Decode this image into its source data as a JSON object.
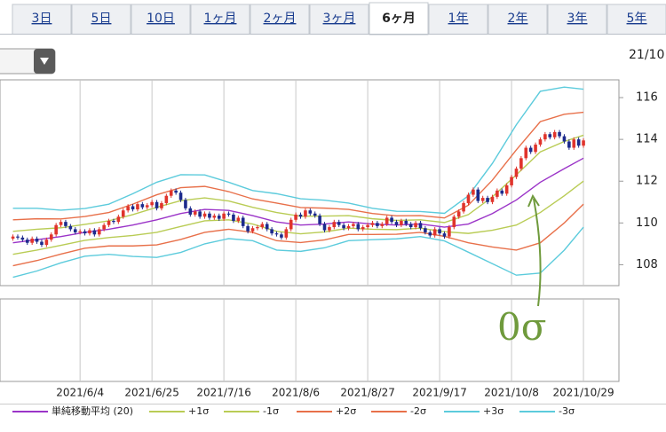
{
  "tabs": {
    "items": [
      "3日",
      "5日",
      "10日",
      "1ヶ月",
      "2ヶ月",
      "3ヶ月",
      "6ヶ月",
      "1年",
      "2年",
      "3年",
      "5年"
    ],
    "selected": 6
  },
  "date_label": "21/10",
  "chart_data": {
    "type": "candlestick",
    "x": [
      0,
      1,
      2,
      3,
      4,
      5,
      6,
      7,
      8,
      9,
      10,
      11,
      12,
      13,
      14,
      15,
      16,
      17,
      18,
      19,
      20,
      21,
      22,
      23,
      24,
      25,
      26,
      27,
      28,
      29,
      30,
      31,
      32,
      33,
      34,
      35,
      36,
      37,
      38,
      39,
      40,
      41,
      42,
      43,
      44,
      45,
      46,
      47,
      48,
      49,
      50,
      51,
      52,
      53,
      54,
      55,
      56,
      57,
      58,
      59,
      60,
      61,
      62,
      63,
      64,
      65,
      66,
      67,
      68,
      69,
      70,
      71,
      72,
      73,
      74,
      75,
      76,
      77,
      78,
      79,
      80,
      81,
      82,
      83,
      84,
      85,
      86,
      87,
      88,
      89,
      90,
      91,
      92,
      93,
      94,
      95,
      96,
      97,
      98,
      99,
      100,
      101,
      102,
      103,
      104,
      105,
      106,
      107,
      108,
      109,
      110,
      111,
      112,
      113,
      114,
      115,
      116,
      117,
      118,
      119
    ],
    "open": [
      109.25,
      109.35,
      109.3,
      109.2,
      109.05,
      109.25,
      109.1,
      108.95,
      109.2,
      109.45,
      109.9,
      110.05,
      109.85,
      109.7,
      109.55,
      109.6,
      109.5,
      109.65,
      109.45,
      109.7,
      109.9,
      110.1,
      110.05,
      110.3,
      110.6,
      110.8,
      110.65,
      110.9,
      110.75,
      110.85,
      111.0,
      110.7,
      110.95,
      111.3,
      111.55,
      111.45,
      111.1,
      110.7,
      110.4,
      110.55,
      110.3,
      110.45,
      110.25,
      110.35,
      110.2,
      110.45,
      110.4,
      110.1,
      110.25,
      109.85,
      109.6,
      109.75,
      109.8,
      109.95,
      109.7,
      109.5,
      109.45,
      109.3,
      109.7,
      110.15,
      110.4,
      110.3,
      110.6,
      110.45,
      110.35,
      109.95,
      109.65,
      109.8,
      110.05,
      109.9,
      109.75,
      109.85,
      109.95,
      109.7,
      109.8,
      109.9,
      110.0,
      109.85,
      109.95,
      110.25,
      110.05,
      109.9,
      110.1,
      109.95,
      109.8,
      110.0,
      109.75,
      109.55,
      109.4,
      109.7,
      109.5,
      109.35,
      109.8,
      110.3,
      110.55,
      110.95,
      111.35,
      111.6,
      111.05,
      111.2,
      111.0,
      111.25,
      111.55,
      111.4,
      111.8,
      112.2,
      112.6,
      113.1,
      113.6,
      113.4,
      113.75,
      114.0,
      114.25,
      114.1,
      114.35,
      114.15,
      113.9,
      113.6,
      114.0,
      113.7
    ],
    "high": [
      109.45,
      109.45,
      109.4,
      109.3,
      109.35,
      109.35,
      109.2,
      109.3,
      109.55,
      110.0,
      110.15,
      110.15,
      109.95,
      109.8,
      109.7,
      109.7,
      109.75,
      109.75,
      109.8,
      110.0,
      110.2,
      110.2,
      110.4,
      110.7,
      110.9,
      110.9,
      111.0,
      111.0,
      110.95,
      111.1,
      111.1,
      111.05,
      111.4,
      111.65,
      111.65,
      111.55,
      111.2,
      110.8,
      110.65,
      110.65,
      110.55,
      110.55,
      110.45,
      110.45,
      110.55,
      110.55,
      110.5,
      110.35,
      110.35,
      109.95,
      109.85,
      109.9,
      110.05,
      110.05,
      109.8,
      109.6,
      109.55,
      109.8,
      110.25,
      110.5,
      110.5,
      110.7,
      110.7,
      110.55,
      110.45,
      110.05,
      109.9,
      110.15,
      110.15,
      110.0,
      109.95,
      110.05,
      110.05,
      109.9,
      110.0,
      110.1,
      110.1,
      110.05,
      110.35,
      110.35,
      110.15,
      110.2,
      110.2,
      110.05,
      110.1,
      110.1,
      109.85,
      109.65,
      109.8,
      109.8,
      109.6,
      109.9,
      110.4,
      110.65,
      111.05,
      111.45,
      111.7,
      111.7,
      111.3,
      111.3,
      111.35,
      111.65,
      111.65,
      111.9,
      112.3,
      112.7,
      113.2,
      113.7,
      113.7,
      113.85,
      114.1,
      114.35,
      114.35,
      114.45,
      114.45,
      114.25,
      114.0,
      114.1,
      114.1,
      114.05
    ],
    "low": [
      109.15,
      109.2,
      109.1,
      108.95,
      108.95,
      109.0,
      108.85,
      108.85,
      109.1,
      109.35,
      109.8,
      109.75,
      109.6,
      109.45,
      109.45,
      109.4,
      109.4,
      109.35,
      109.35,
      109.6,
      109.8,
      109.95,
      109.95,
      110.2,
      110.5,
      110.55,
      110.55,
      110.65,
      110.65,
      110.75,
      110.6,
      110.6,
      110.85,
      111.2,
      111.35,
      111.0,
      110.6,
      110.3,
      110.3,
      110.2,
      110.2,
      110.15,
      110.15,
      110.1,
      110.1,
      110.3,
      110.0,
      110.0,
      109.75,
      109.5,
      109.5,
      109.65,
      109.7,
      109.6,
      109.4,
      109.35,
      109.2,
      109.2,
      109.6,
      110.05,
      110.2,
      110.2,
      110.35,
      110.25,
      109.85,
      109.55,
      109.55,
      109.7,
      109.8,
      109.65,
      109.65,
      109.75,
      109.6,
      109.6,
      109.7,
      109.8,
      109.75,
      109.75,
      109.85,
      109.95,
      109.8,
      109.8,
      109.85,
      109.7,
      109.7,
      109.65,
      109.45,
      109.3,
      109.3,
      109.4,
      109.25,
      109.25,
      109.7,
      110.2,
      110.45,
      110.85,
      111.25,
      110.95,
      110.95,
      110.9,
      110.9,
      111.15,
      111.3,
      111.3,
      111.7,
      112.1,
      112.5,
      113.0,
      113.3,
      113.3,
      113.65,
      113.9,
      114.0,
      114.0,
      114.05,
      113.8,
      113.5,
      113.5,
      113.6,
      113.6
    ],
    "close": [
      109.35,
      109.3,
      109.2,
      109.05,
      109.25,
      109.1,
      108.95,
      109.2,
      109.45,
      109.9,
      110.05,
      109.85,
      109.7,
      109.55,
      109.6,
      109.5,
      109.65,
      109.45,
      109.7,
      109.9,
      110.1,
      110.05,
      110.3,
      110.6,
      110.8,
      110.65,
      110.9,
      110.75,
      110.85,
      111.0,
      110.7,
      110.95,
      111.3,
      111.55,
      111.45,
      111.1,
      110.7,
      110.4,
      110.55,
      110.3,
      110.45,
      110.25,
      110.35,
      110.2,
      110.45,
      110.4,
      110.1,
      110.25,
      109.85,
      109.6,
      109.75,
      109.8,
      109.95,
      109.7,
      109.5,
      109.45,
      109.3,
      109.7,
      110.15,
      110.4,
      110.3,
      110.6,
      110.45,
      110.35,
      109.95,
      109.65,
      109.8,
      110.05,
      109.9,
      109.75,
      109.85,
      109.95,
      109.7,
      109.8,
      109.9,
      110.0,
      109.85,
      109.95,
      110.25,
      110.05,
      109.9,
      110.1,
      109.95,
      109.8,
      110.0,
      109.75,
      109.55,
      109.4,
      109.7,
      109.5,
      109.35,
      109.8,
      110.3,
      110.55,
      110.95,
      111.35,
      111.6,
      111.05,
      111.2,
      111.0,
      111.25,
      111.55,
      111.4,
      111.8,
      112.2,
      112.6,
      113.1,
      113.6,
      113.4,
      113.75,
      114.0,
      114.25,
      114.1,
      114.35,
      114.15,
      113.9,
      113.6,
      114.0,
      113.7,
      113.95
    ],
    "up_color": "#e0342c",
    "down_color": "#1c2a8c",
    "lines": [
      {
        "name": "単純移動平均 (20)",
        "color": "#9b34c8",
        "x": [
          0,
          5,
          10,
          15,
          20,
          25,
          30,
          35,
          40,
          45,
          50,
          55,
          60,
          65,
          70,
          75,
          80,
          85,
          90,
          95,
          100,
          105,
          110,
          115,
          119
        ],
        "values": [
          109.05,
          109.2,
          109.35,
          109.55,
          109.7,
          109.9,
          110.15,
          110.45,
          110.65,
          110.6,
          110.35,
          110.05,
          109.9,
          109.95,
          110.05,
          109.95,
          109.9,
          109.95,
          109.8,
          109.95,
          110.45,
          111.1,
          111.95,
          112.6,
          113.1
        ]
      },
      {
        "name": "+1σ",
        "color": "#b9cc55",
        "x": [
          0,
          5,
          10,
          15,
          20,
          25,
          30,
          35,
          40,
          45,
          50,
          55,
          60,
          65,
          70,
          75,
          80,
          85,
          90,
          95,
          100,
          105,
          110,
          115,
          119
        ],
        "values": [
          109.6,
          109.7,
          109.77,
          109.93,
          110.1,
          110.4,
          110.75,
          111.07,
          111.2,
          111.05,
          110.75,
          110.5,
          110.32,
          110.33,
          110.35,
          110.2,
          110.12,
          110.15,
          110.02,
          110.4,
          111.25,
          112.3,
          113.4,
          113.9,
          114.2
        ]
      },
      {
        "name": "-1σ",
        "color": "#b9cc55",
        "x": [
          0,
          5,
          10,
          15,
          20,
          25,
          30,
          35,
          40,
          45,
          50,
          55,
          60,
          65,
          70,
          75,
          80,
          85,
          90,
          95,
          100,
          105,
          110,
          115,
          119
        ],
        "values": [
          108.5,
          108.7,
          108.93,
          109.17,
          109.3,
          109.4,
          109.55,
          109.83,
          110.1,
          110.15,
          109.95,
          109.6,
          109.48,
          109.57,
          109.75,
          109.7,
          109.68,
          109.75,
          109.58,
          109.5,
          109.65,
          109.9,
          110.5,
          111.3,
          112.0
        ]
      },
      {
        "name": "+2σ",
        "color": "#e8704a",
        "x": [
          0,
          5,
          10,
          15,
          20,
          25,
          30,
          35,
          40,
          45,
          50,
          55,
          60,
          65,
          70,
          75,
          80,
          85,
          90,
          95,
          100,
          105,
          110,
          115,
          119
        ],
        "values": [
          110.15,
          110.2,
          110.19,
          110.31,
          110.5,
          110.9,
          111.35,
          111.69,
          111.75,
          111.5,
          111.15,
          110.95,
          110.74,
          110.71,
          110.65,
          110.45,
          110.34,
          110.35,
          110.24,
          110.85,
          112.05,
          113.5,
          114.85,
          115.2,
          115.3
        ]
      },
      {
        "name": "-2σ",
        "color": "#e8704a",
        "x": [
          0,
          5,
          10,
          15,
          20,
          25,
          30,
          35,
          40,
          45,
          50,
          55,
          60,
          65,
          70,
          75,
          80,
          85,
          90,
          95,
          100,
          105,
          110,
          115,
          119
        ],
        "values": [
          107.95,
          108.2,
          108.51,
          108.79,
          108.9,
          108.9,
          108.95,
          109.21,
          109.55,
          109.7,
          109.55,
          109.15,
          109.06,
          109.19,
          109.45,
          109.45,
          109.46,
          109.55,
          109.36,
          109.05,
          108.85,
          108.7,
          109.05,
          110.0,
          110.9
        ]
      },
      {
        "name": "+3σ",
        "color": "#5ccbdc",
        "x": [
          0,
          5,
          10,
          15,
          20,
          25,
          30,
          35,
          40,
          45,
          50,
          55,
          60,
          65,
          70,
          75,
          80,
          85,
          90,
          95,
          100,
          105,
          110,
          115,
          119
        ],
        "values": [
          110.7,
          110.7,
          110.61,
          110.69,
          110.9,
          111.4,
          111.95,
          112.31,
          112.3,
          111.95,
          111.55,
          111.4,
          111.16,
          111.09,
          110.95,
          110.7,
          110.56,
          110.55,
          110.46,
          111.3,
          112.85,
          114.7,
          116.3,
          116.5,
          116.4
        ]
      },
      {
        "name": "-3σ",
        "color": "#5ccbdc",
        "x": [
          0,
          5,
          10,
          15,
          20,
          25,
          30,
          35,
          40,
          45,
          50,
          55,
          60,
          65,
          70,
          75,
          80,
          85,
          90,
          95,
          100,
          105,
          110,
          115,
          119
        ],
        "values": [
          107.4,
          107.7,
          108.09,
          108.41,
          108.5,
          108.4,
          108.35,
          108.59,
          109.0,
          109.25,
          109.15,
          108.7,
          108.64,
          108.81,
          109.15,
          109.2,
          109.24,
          109.35,
          109.14,
          108.6,
          108.05,
          107.5,
          107.6,
          108.7,
          109.8
        ]
      }
    ],
    "xlim": [
      -2.7,
      126.4
    ],
    "xticks": [
      {
        "value": 14,
        "label": "2021/6/4"
      },
      {
        "value": 29,
        "label": "2021/6/25"
      },
      {
        "value": 44,
        "label": "2021/7/16"
      },
      {
        "value": 59,
        "label": "2021/8/6"
      },
      {
        "value": 74,
        "label": "2021/8/27"
      },
      {
        "value": 89,
        "label": "2021/9/17"
      },
      {
        "value": 104,
        "label": "2021/10/8"
      },
      {
        "value": 119,
        "label": "2021/10/29"
      }
    ],
    "ylim": [
      107,
      116.85
    ],
    "yticks": [
      108,
      110,
      112,
      114,
      116
    ],
    "grid": "x",
    "annotations": [
      {
        "text": "0σ",
        "color": "#6f9a3c"
      }
    ]
  }
}
